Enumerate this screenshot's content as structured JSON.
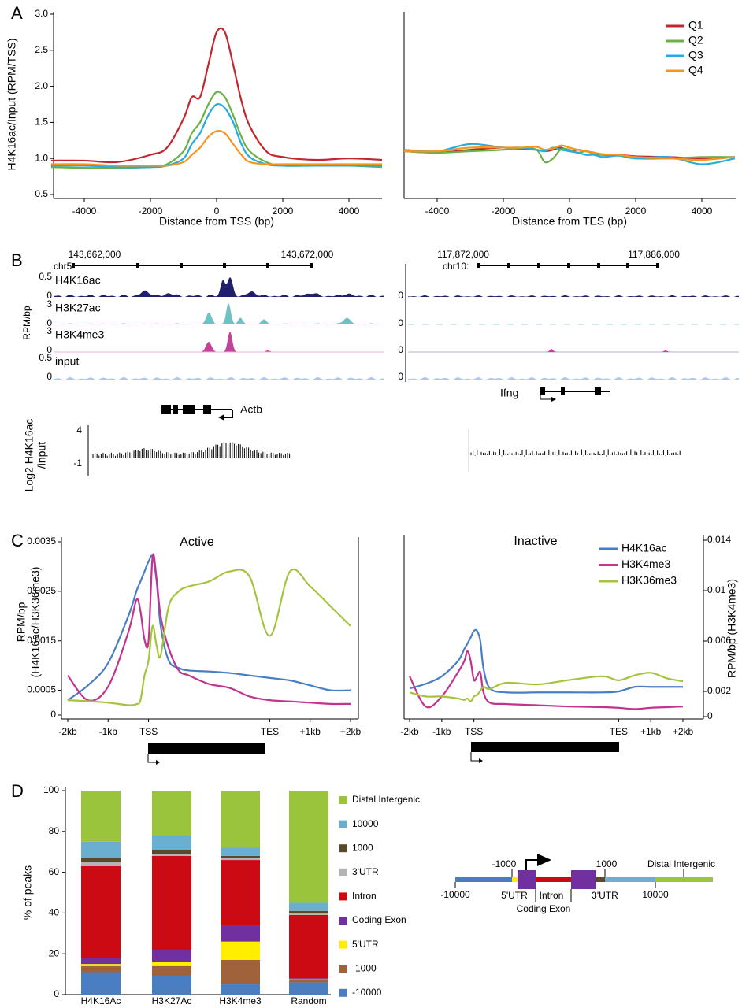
{
  "panels": [
    "A",
    "B",
    "C",
    "D"
  ],
  "chart_data": [
    {
      "type": "line",
      "x_label": "Distance from TSS (bp)",
      "y_label": "H4K16ac/Input (RPM/TSS)",
      "x": [
        -5000,
        -4000,
        -3000,
        -2000,
        -1500,
        -1000,
        -750,
        -500,
        -250,
        0,
        250,
        500,
        750,
        1000,
        1500,
        2000,
        3000,
        4000,
        5000
      ],
      "xlim": [
        -5000,
        5000
      ],
      "xticks": [
        -4000,
        -2000,
        0,
        2000,
        4000
      ],
      "ylim": [
        0.5,
        3.0
      ],
      "yticks": [
        0.5,
        {
          "value": 1,
          "label": "1.0"
        },
        1.5,
        {
          "value": 2,
          "label": "2.0"
        },
        2.5,
        {
          "value": 3,
          "label": "3.0"
        }
      ],
      "series": [
        {
          "color": "#c0272d",
          "values": [
            0.97,
            0.97,
            0.95,
            1.05,
            1.15,
            1.55,
            1.85,
            1.85,
            2.3,
            2.75,
            2.75,
            2.3,
            1.8,
            1.45,
            1.1,
            1.02,
            0.98,
            1.0,
            0.98
          ]
        },
        {
          "color": "#6ab043",
          "values": [
            0.88,
            0.87,
            0.87,
            0.88,
            0.92,
            1.1,
            1.35,
            1.5,
            1.75,
            1.92,
            1.85,
            1.6,
            1.3,
            1.1,
            0.95,
            0.9,
            0.9,
            0.9,
            0.88
          ]
        },
        {
          "color": "#27aae1",
          "values": [
            0.9,
            0.9,
            0.88,
            0.88,
            0.9,
            1.0,
            1.2,
            1.35,
            1.6,
            1.75,
            1.7,
            1.5,
            1.2,
            1.02,
            0.92,
            0.9,
            0.9,
            0.9,
            0.9
          ]
        },
        {
          "color": "#f7941d",
          "values": [
            0.92,
            0.92,
            0.9,
            0.9,
            0.9,
            0.95,
            1.05,
            1.15,
            1.3,
            1.38,
            1.35,
            1.2,
            1.05,
            0.95,
            0.92,
            0.92,
            0.92,
            0.92,
            0.92
          ]
        }
      ]
    },
    {
      "type": "line",
      "x_label": "Distance from TES (bp)",
      "x": [
        -5000,
        -4000,
        -3000,
        -2000,
        -1500,
        -1000,
        -750,
        -500,
        -250,
        0,
        250,
        500,
        750,
        1000,
        1500,
        2000,
        3000,
        4000,
        5000
      ],
      "xlim": [
        -5000,
        5000
      ],
      "xticks": [
        -4000,
        -2000,
        0,
        2000,
        4000
      ],
      "ylim": [
        0.5,
        3.0
      ],
      "legend": "upper right",
      "series": [
        {
          "name": "Q1",
          "color": "#c0272d",
          "values": [
            1.1,
            1.08,
            1.12,
            1.15,
            1.13,
            1.12,
            1.1,
            1.12,
            1.15,
            1.1,
            1.12,
            1.1,
            1.08,
            1.05,
            1.05,
            1.03,
            1.02,
            1.0,
            1.02
          ]
        },
        {
          "name": "Q2",
          "color": "#6ab043",
          "values": [
            1.1,
            1.08,
            1.1,
            1.12,
            1.14,
            1.12,
            0.95,
            1.0,
            1.13,
            1.12,
            1.08,
            1.1,
            1.06,
            1.05,
            1.04,
            1.0,
            1.0,
            1.02,
            1.02
          ]
        },
        {
          "name": "Q3",
          "color": "#27aae1",
          "values": [
            1.12,
            1.1,
            1.2,
            1.15,
            1.15,
            1.12,
            1.1,
            1.15,
            1.12,
            1.1,
            1.08,
            1.05,
            1.05,
            1.02,
            1.04,
            1.0,
            1.02,
            0.92,
            1.0
          ]
        },
        {
          "name": "Q4",
          "color": "#f7941d",
          "values": [
            1.1,
            1.1,
            1.15,
            1.15,
            1.15,
            1.16,
            1.12,
            1.14,
            1.18,
            1.15,
            1.12,
            1.1,
            1.08,
            1.06,
            1.05,
            1.02,
            1.0,
            0.98,
            1.02
          ]
        }
      ]
    },
    {
      "type": "line",
      "title": "Active",
      "y_label": [
        "RPM/bp",
        "(H4K16ac/H3K36me3)"
      ],
      "x": [
        -2000,
        -1500,
        -1000,
        -500,
        -300,
        -200,
        -100,
        0,
        100,
        200,
        300,
        500,
        750,
        1000,
        1500,
        2000,
        2500,
        3000,
        3500,
        4000,
        4500,
        5000
      ],
      "xlim": [
        -2000,
        5000
      ],
      "xticks": [
        {
          "value": -2000,
          "label": "-2kb"
        },
        {
          "value": -1000,
          "label": "-1kb"
        },
        {
          "value": 0,
          "label": "TSS"
        },
        {
          "value": 3000,
          "label": "TES"
        },
        {
          "value": 4000,
          "label": "+1kb"
        },
        {
          "value": 5000,
          "label": "+2kb"
        }
      ],
      "ylim": [
        0,
        0.0035
      ],
      "yticks": [
        0,
        0.0005,
        0.0015,
        0.0025,
        0.0035
      ],
      "y2lim": [
        0,
        0.014
      ],
      "series": [
        {
          "color": "#4a7ec3",
          "values": [
            0.0003,
            0.0006,
            0.00105,
            0.002,
            0.0025,
            0.0027,
            0.0029,
            0.0031,
            0.0032,
            0.0027,
            0.0018,
            0.0011,
            0.00095,
            0.0009,
            0.00088,
            0.00085,
            0.0008,
            0.00075,
            0.0007,
            0.0006,
            0.0005,
            0.0005
          ]
        },
        {
          "color": "#c0338f",
          "axis": "y2",
          "values": [
            0.0032,
            0.0012,
            0.0023,
            0.0067,
            0.0093,
            0.0084,
            0.0061,
            0.006,
            0.0128,
            0.011,
            0.008,
            0.0054,
            0.0036,
            0.0032,
            0.0025,
            0.0022,
            0.0015,
            0.0012,
            0.0011,
            0.001,
            0.0009,
            0.0009
          ]
        },
        {
          "color": "#a4c43c",
          "values": [
            0.0003,
            0.00028,
            0.00025,
            0.0002,
            0.00022,
            0.0003,
            0.0008,
            0.0011,
            0.0018,
            0.0014,
            0.0012,
            0.0022,
            0.0025,
            0.0026,
            0.0027,
            0.0029,
            0.0028,
            0.0016,
            0.0029,
            0.0026,
            0.0022,
            0.0018
          ]
        }
      ]
    },
    {
      "type": "line",
      "title": "Inactive",
      "y2_label": "RPM/bp (H3K4me3)",
      "x": [
        -2000,
        -1500,
        -1000,
        -500,
        -300,
        -200,
        -100,
        0,
        100,
        200,
        300,
        500,
        1000,
        2000,
        3000,
        4000,
        4500,
        5000,
        5500,
        6000,
        6500
      ],
      "xlim": [
        -2000,
        6500
      ],
      "xticks": [
        {
          "value": -2000,
          "label": "-2kb"
        },
        {
          "value": -1000,
          "label": "-1kb"
        },
        {
          "value": 0,
          "label": "TSS"
        },
        {
          "value": 4500,
          "label": "TES"
        },
        {
          "value": 5500,
          "label": "+1kb"
        },
        {
          "value": 6500,
          "label": "+2kb"
        }
      ],
      "ylim": [
        0,
        0.0035
      ],
      "y2lim": [
        0,
        0.014
      ],
      "y2ticks": [
        0,
        0.002,
        0.006,
        0.01,
        0.014
      ],
      "legend": "upper right",
      "series": [
        {
          "name": "H4K16ac",
          "color": "#4a7ec3",
          "values": [
            0.00056,
            0.00065,
            0.0008,
            0.0011,
            0.00134,
            0.00145,
            0.00157,
            0.0017,
            0.0017,
            0.0015,
            0.00095,
            0.00056,
            0.00048,
            0.00048,
            0.00048,
            0.00048,
            0.0005,
            0.00059,
            0.00059,
            0.00059,
            0.00059
          ]
        },
        {
          "name": "H3K4me3",
          "color": "#c0338f",
          "axis": "y2",
          "values": [
            0.0032,
            0.0008,
            0.0016,
            0.0035,
            0.0044,
            0.0052,
            0.0044,
            0.0029,
            0.0032,
            0.0035,
            0.0019,
            0.0011,
            0.001,
            0.0009,
            0.0008,
            0.00075,
            0.0007,
            0.0006,
            0.0007,
            0.00075,
            0.0008
          ]
        },
        {
          "name": "H3K36me3",
          "color": "#a4c43c",
          "values": [
            0.00048,
            0.0004,
            0.0004,
            0.00036,
            0.00033,
            0.00036,
            0.0003,
            0.0004,
            0.00043,
            0.00051,
            0.00059,
            0.00055,
            0.00067,
            0.00064,
            0.00073,
            0.0008,
            0.00072,
            0.00082,
            0.00087,
            0.00076,
            0.0007
          ]
        }
      ]
    },
    {
      "type": "bar",
      "stacked": true,
      "y_label": "% of peaks",
      "categories": [
        "H4K16Ac",
        "H3K27Ac",
        "H3K4me3",
        "Random"
      ],
      "ylim": [
        0,
        100
      ],
      "yticks": [
        0,
        20,
        40,
        60,
        80,
        100
      ],
      "legend": "right",
      "series": [
        {
          "name": "-10000",
          "color": "#4a7ec3",
          "values": [
            11,
            9,
            5,
            6
          ]
        },
        {
          "name": "-1000",
          "color": "#a0623a",
          "values": [
            3,
            5,
            12,
            1
          ]
        },
        {
          "name": "5'UTR",
          "color": "#ffee00",
          "values": [
            1,
            2,
            9,
            0.5
          ]
        },
        {
          "name": "Coding Exon",
          "color": "#7030a0",
          "values": [
            3,
            6,
            8,
            0.5
          ]
        },
        {
          "name": "Intron",
          "color": "#cc0a14",
          "values": [
            45,
            46,
            32,
            31
          ]
        },
        {
          "name": "3'UTR",
          "color": "#b4b4b4",
          "values": [
            2,
            1,
            1,
            1
          ]
        },
        {
          "name": "1000",
          "color": "#5a4a2a",
          "values": [
            2,
            2,
            1,
            1
          ]
        },
        {
          "name": "10000",
          "color": "#6aaed0",
          "values": [
            8,
            7,
            4,
            4
          ]
        },
        {
          "name": "Distal Intergenic",
          "color": "#9ac43c",
          "values": [
            25,
            22,
            28,
            55
          ]
        }
      ]
    }
  ],
  "browser": {
    "y_label": "RPM/bp",
    "left": {
      "chrom": "chr5:",
      "coords": [
        "143,662,000",
        "143,672,000"
      ],
      "tracks": [
        {
          "name": "H4K16ac",
          "max": "0.5",
          "min": "0"
        },
        {
          "name": "H3K27ac",
          "max": "3",
          "min": "0"
        },
        {
          "name": "H3K4me3",
          "max": "3",
          "min": "0"
        },
        {
          "name": "input",
          "max": "0.5",
          "min": "0"
        }
      ],
      "gene": "Actb"
    },
    "right": {
      "chrom": "chr10:",
      "coords": [
        "117,872,000",
        "117,886,000"
      ],
      "gene": "Ifng"
    },
    "log2": {
      "y_label": [
        "Log2 H4K16ac",
        "/input"
      ],
      "ticks": [
        "4",
        "-1"
      ]
    }
  },
  "gene_diagram": {
    "labels": [
      "-1000",
      "1000",
      "Distal Intergenic",
      "-10000",
      "5'UTR",
      "Intron",
      "3'UTR",
      "10000",
      "Coding Exon"
    ]
  }
}
